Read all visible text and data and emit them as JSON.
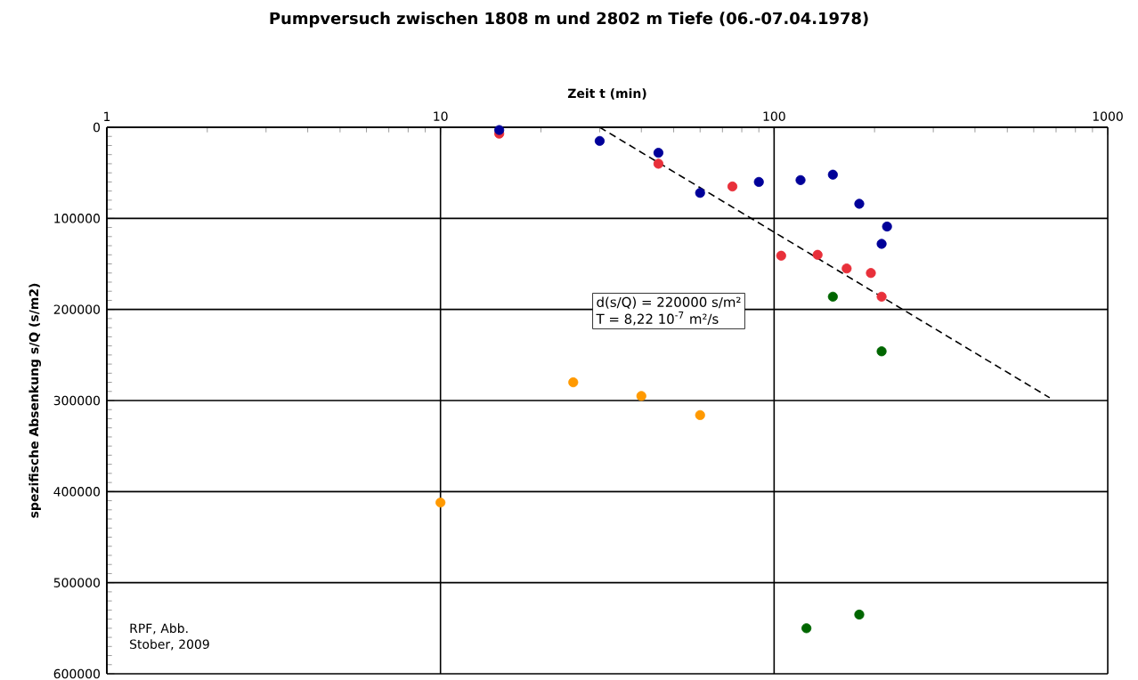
{
  "chart_data": {
    "type": "scatter",
    "title": "Pumpversuch zwischen 1808 m und 2802 m Tiefe (06.-07.04.1978)",
    "xlabel": "Zeit t (min)",
    "ylabel": "spezifische Absenkung s/Q (s/m2)",
    "log": "x",
    "grid": true,
    "marker": "circle",
    "xlim": [
      1,
      1000
    ],
    "xticks": [
      1,
      10,
      100,
      1000
    ],
    "ylim": [
      600000,
      0
    ],
    "yticks": [
      0,
      100000,
      200000,
      300000,
      400000,
      500000,
      600000
    ],
    "series": [
      {
        "color": "#000099",
        "x": [
          15,
          30,
          45,
          60,
          90,
          120,
          150,
          180,
          218,
          210
        ],
        "values": [
          3000,
          15000,
          28000,
          72000,
          60000,
          58000,
          52000,
          84000,
          109000,
          128000
        ]
      },
      {
        "color": "#e8303a",
        "x": [
          15,
          45,
          75,
          105,
          135,
          165,
          195,
          210
        ],
        "values": [
          7000,
          40000,
          65000,
          141000,
          140000,
          155000,
          160000,
          186000
        ]
      },
      {
        "color": "#006600",
        "x": [
          150,
          210,
          125,
          180
        ],
        "values": [
          186000,
          246000,
          550000,
          535000
        ]
      },
      {
        "color": "#ff9900",
        "x": [
          25,
          40,
          60,
          10
        ],
        "values": [
          280000,
          295000,
          316000,
          412000
        ]
      },
      {
        "type": "line",
        "color": "#000000",
        "marker": "none",
        "line_style": "dashed",
        "x": [
          30,
          670
        ],
        "values": [
          0,
          297000
        ]
      }
    ],
    "annotations": [
      "d(s/Q) = 220000 s/m²",
      "T = 8,22 10$^{-7}$ m²/s",
      "RPF, Abb. Stober, 2009"
    ]
  }
}
